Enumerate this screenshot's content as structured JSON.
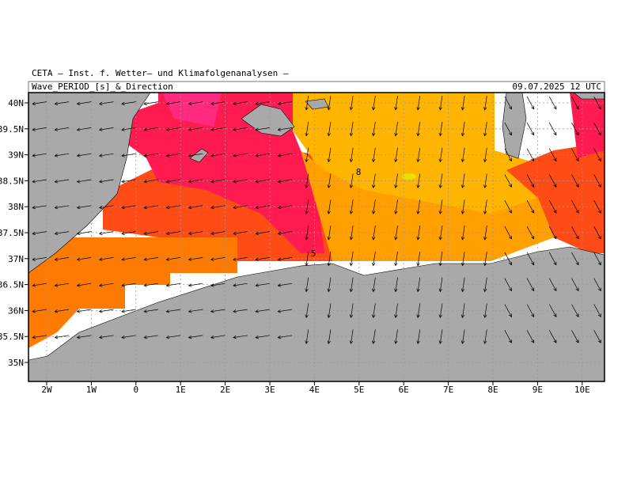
{
  "header": {
    "institute": "CETA — Inst. f. Wetter— und Klimafolgenanalysen —",
    "title": "Wave_PERIOD_[s]_&_Direction",
    "date": "09.07.2025 12 UTC"
  },
  "lat_labels": [
    "40N",
    "39.5N",
    "39N",
    "38.5N",
    "38N",
    "37.5N",
    "37N",
    "36.5N",
    "36N",
    "35.5N",
    "35N"
  ],
  "lon_labels": [
    "2W",
    "1W",
    "0",
    "1E",
    "2E",
    "3E",
    "4E",
    "5E",
    "6E",
    "7E",
    "8E",
    "9E",
    "10E"
  ],
  "contour_labels": [
    "5",
    "8"
  ]
}
